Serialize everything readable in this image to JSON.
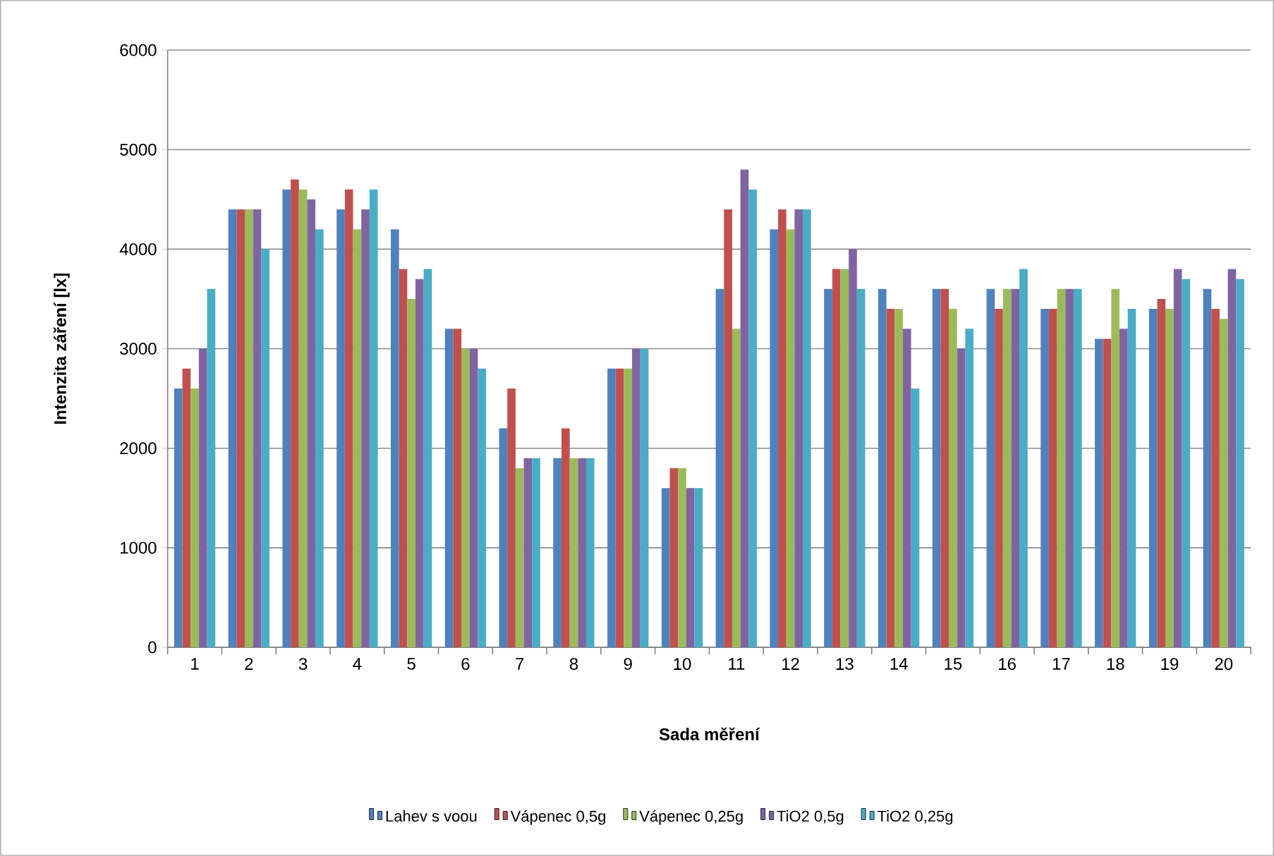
{
  "chart_data": {
    "type": "bar",
    "xlabel": "Sada měření",
    "ylabel": "Intenzita záření [lx]",
    "categories": [
      "1",
      "2",
      "3",
      "4",
      "5",
      "6",
      "7",
      "8",
      "9",
      "10",
      "11",
      "12",
      "13",
      "14",
      "15",
      "16",
      "17",
      "18",
      "19",
      "20"
    ],
    "series": [
      {
        "name": "Lahev s voou",
        "color": "#4f81bd",
        "values": [
          2600,
          4400,
          4600,
          4400,
          4200,
          3200,
          2200,
          1900,
          2800,
          1600,
          3600,
          4200,
          3600,
          3600,
          3600,
          3600,
          3400,
          3100,
          3400,
          3600
        ]
      },
      {
        "name": "Vápenec 0,5g",
        "color": "#c0504d",
        "values": [
          2800,
          4400,
          4700,
          4600,
          3800,
          3200,
          2600,
          2200,
          2800,
          1800,
          4400,
          4400,
          3800,
          3400,
          3600,
          3400,
          3400,
          3100,
          3500,
          3400
        ]
      },
      {
        "name": "Vápenec 0,25g",
        "color": "#9bbb59",
        "values": [
          2600,
          4400,
          4600,
          4200,
          3500,
          3000,
          1800,
          1900,
          2800,
          1800,
          3200,
          4200,
          3800,
          3400,
          3400,
          3600,
          3600,
          3600,
          3400,
          3300
        ]
      },
      {
        "name": "TiO2 0,5g",
        "color": "#8064a2",
        "values": [
          3000,
          4400,
          4500,
          4400,
          3700,
          3000,
          1900,
          1900,
          3000,
          1600,
          4800,
          4400,
          4000,
          3200,
          3000,
          3600,
          3600,
          3200,
          3800,
          3800
        ]
      },
      {
        "name": "TiO2 0,25g",
        "color": "#4bacc6",
        "values": [
          3600,
          4000,
          4200,
          4600,
          3800,
          2800,
          1900,
          1900,
          3000,
          1600,
          4600,
          4400,
          3600,
          2600,
          3200,
          3800,
          3600,
          3400,
          3700,
          3700
        ]
      }
    ],
    "ylim": [
      0,
      6000
    ],
    "yticks": [
      0,
      1000,
      2000,
      3000,
      4000,
      5000,
      6000
    ],
    "grid": "y",
    "legend": "bottom"
  }
}
